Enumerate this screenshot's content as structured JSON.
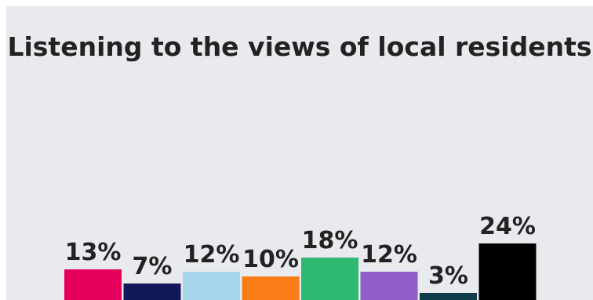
{
  "chart_data": {
    "type": "bar",
    "title": "Listening to the views of local residents",
    "categories": [
      "",
      "",
      "",
      "",
      "",
      "",
      "",
      ""
    ],
    "values": [
      13,
      7,
      12,
      10,
      18,
      12,
      3,
      24
    ],
    "value_labels": [
      "13%",
      "7%",
      "12%",
      "10%",
      "18%",
      "12%",
      "3%",
      "24%"
    ],
    "colors": [
      "#e4005b",
      "#12195a",
      "#a9d6ef",
      "#f97c17",
      "#2eb872",
      "#8f5ec7",
      "#0f3e4a",
      "#000000"
    ],
    "grid": false,
    "legend": "none",
    "unit": "%"
  }
}
